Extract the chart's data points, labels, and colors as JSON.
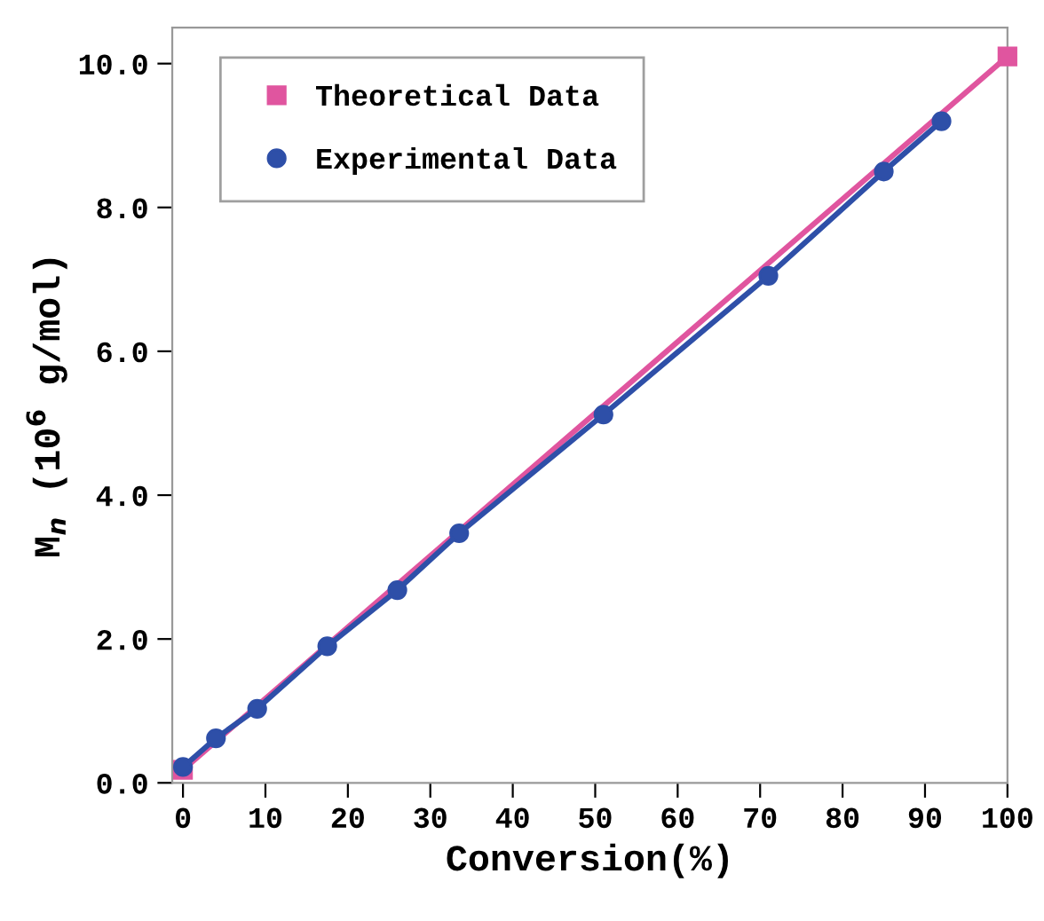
{
  "chart_data": {
    "type": "line",
    "xlabel": "Conversion(%)",
    "ylabel": "M$_{n}$ (10$^{6}$ g/mol)",
    "xlim": [
      -1.3,
      100
    ],
    "ylim": [
      0,
      10.5
    ],
    "xticks": [
      0,
      10,
      20,
      30,
      40,
      50,
      60,
      70,
      80,
      90,
      100
    ],
    "yticks": [
      {
        "value": 0,
        "label": "0.0"
      },
      {
        "value": 2,
        "label": "2.0"
      },
      {
        "value": 4,
        "label": "4.0"
      },
      {
        "value": 6,
        "label": "6.0"
      },
      {
        "value": 8,
        "label": "8.0"
      },
      {
        "value": 10,
        "label": "10.0"
      }
    ],
    "grid": false,
    "legend": "top left",
    "series": [
      {
        "name": "Theoretical Data",
        "color": "#e0559f",
        "marker": "square",
        "x": [
          0,
          100
        ],
        "values": [
          0.18,
          10.1
        ]
      },
      {
        "name": "Experimental Data",
        "color": "#2e4fa8",
        "marker": "circle",
        "x": [
          0,
          4,
          9,
          17.5,
          26,
          33.5,
          51,
          71,
          85,
          92
        ],
        "values": [
          0.22,
          0.62,
          1.03,
          1.9,
          2.68,
          3.47,
          5.12,
          7.05,
          8.5,
          9.2
        ]
      }
    ]
  }
}
